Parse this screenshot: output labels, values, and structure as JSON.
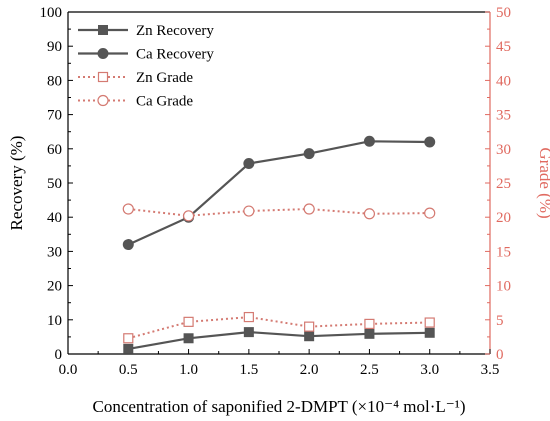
{
  "chart_data": {
    "type": "line",
    "xlabel": "Concentration of saponified 2-DMPT (×10⁻⁴ mol·L⁻¹)",
    "ylabel_left": "Recovery (%)",
    "ylabel_right": "Grade (%)",
    "xlim": [
      0.0,
      3.5
    ],
    "ylim_left": [
      0,
      100
    ],
    "ylim_right": [
      0,
      50
    ],
    "x_ticks": [
      "0.0",
      "0.5",
      "1.0",
      "1.5",
      "2.0",
      "2.5",
      "3.0",
      "3.5"
    ],
    "y_left_ticks": [
      "0",
      "10",
      "20",
      "30",
      "40",
      "50",
      "60",
      "70",
      "80",
      "90",
      "100"
    ],
    "y_right_ticks": [
      "0",
      "5",
      "10",
      "15",
      "20",
      "25",
      "30",
      "35",
      "40",
      "45",
      "50"
    ],
    "grid": false,
    "legend_position": "top-left",
    "colors": {
      "recovery": "#555555",
      "grade": "#d47a72",
      "right_axis": "#e06a60"
    },
    "x": [
      0.5,
      1.0,
      1.5,
      2.0,
      2.5,
      3.0
    ],
    "series": [
      {
        "name": "Zn Recovery",
        "axis": "left",
        "marker": "filled-square",
        "line": "solid",
        "values": [
          1.5,
          4.6,
          6.4,
          5.2,
          5.9,
          6.2
        ]
      },
      {
        "name": "Ca Recovery",
        "axis": "left",
        "marker": "filled-circle",
        "line": "solid",
        "values": [
          32.0,
          40.0,
          55.7,
          58.6,
          62.2,
          62.0
        ]
      },
      {
        "name": "Zn Grade",
        "axis": "right",
        "marker": "open-square",
        "line": "dotted",
        "values": [
          2.3,
          4.7,
          5.4,
          4.0,
          4.4,
          4.6
        ]
      },
      {
        "name": "Ca Grade",
        "axis": "right",
        "marker": "open-circle",
        "line": "dotted",
        "values": [
          21.2,
          20.2,
          20.9,
          21.2,
          20.5,
          20.6
        ]
      }
    ]
  }
}
